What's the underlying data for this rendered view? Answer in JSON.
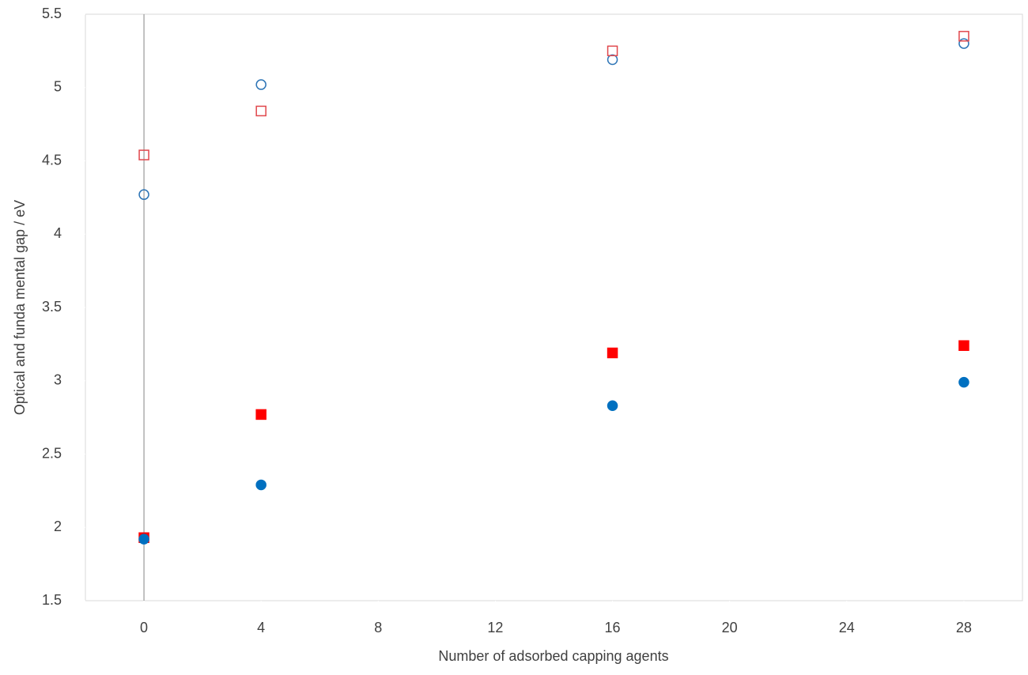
{
  "chart_data": {
    "type": "scatter",
    "x_label": "Number of adsorbed capping agents",
    "y_label": "Optical  and funda mental gap / eV",
    "x": [
      0,
      4,
      16,
      28
    ],
    "series": [
      {
        "color": "#2e75b6",
        "marker": "circle",
        "filled": false,
        "values": [
          4.27,
          5.02,
          5.19,
          5.3
        ]
      },
      {
        "color": "#e0474c",
        "marker": "square",
        "filled": false,
        "values": [
          4.54,
          4.84,
          5.25,
          5.35
        ]
      },
      {
        "color": "#ff0000",
        "marker": "square",
        "filled": true,
        "values": [
          1.93,
          2.77,
          3.19,
          3.24
        ]
      },
      {
        "color": "#0070c0",
        "marker": "circle",
        "filled": true,
        "values": [
          1.92,
          2.29,
          2.83,
          2.99
        ]
      }
    ],
    "xlim": [
      -2,
      30
    ],
    "xticks": [
      0,
      4,
      8,
      12,
      16,
      20,
      24,
      28
    ],
    "ylim": [
      1.5,
      5.5
    ],
    "yticks": [
      1.5,
      2,
      2.5,
      3,
      3.5,
      4,
      4.5,
      5,
      5.5
    ],
    "grid": false
  }
}
